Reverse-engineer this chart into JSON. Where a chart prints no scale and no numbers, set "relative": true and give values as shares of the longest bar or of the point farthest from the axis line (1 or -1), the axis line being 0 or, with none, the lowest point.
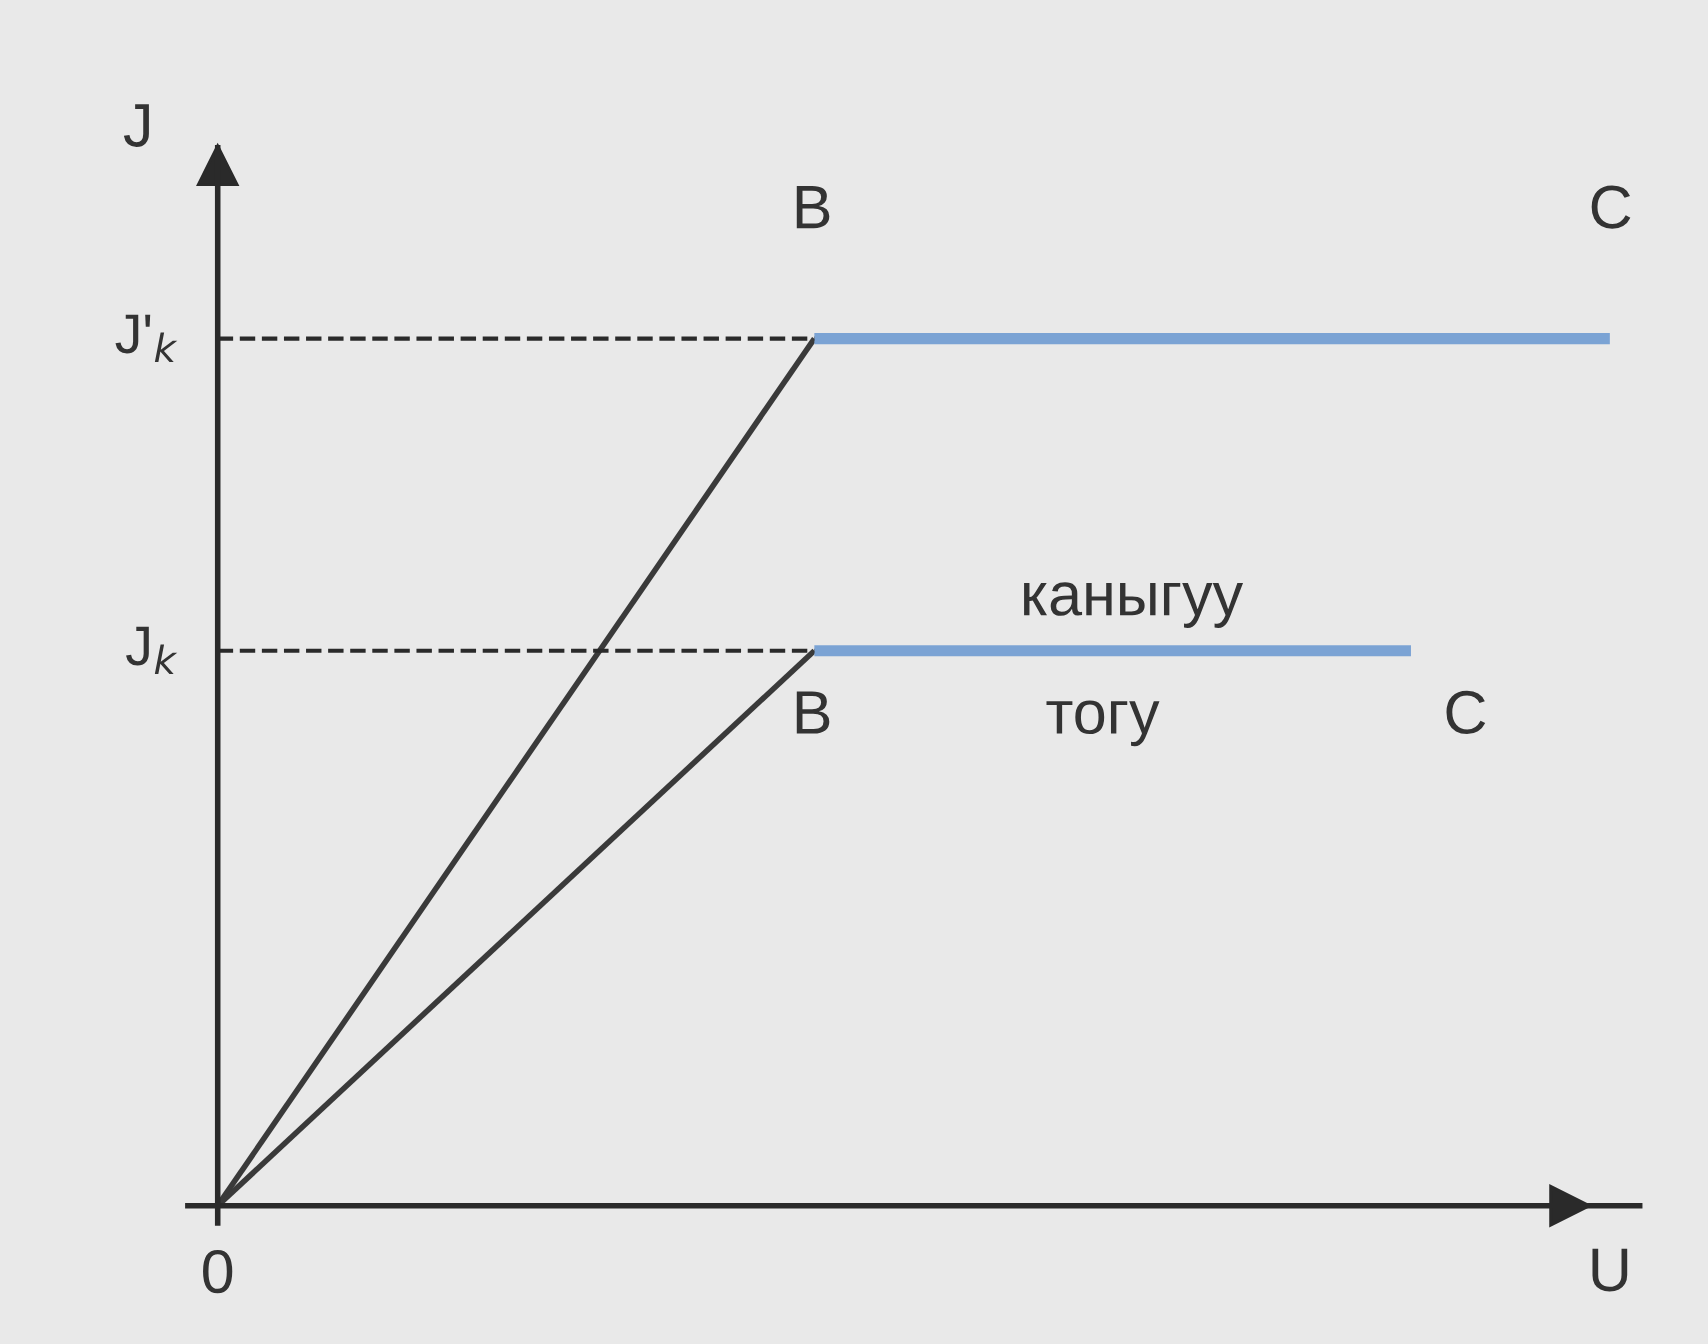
{
  "chart_data": {
    "type": "line",
    "relative": true,
    "xlabel": "U",
    "ylabel": "J",
    "marker": "none",
    "line_style": "solid",
    "categories": [
      null,
      null,
      null,
      null,
      null,
      null,
      null,
      null
    ],
    "series": [
      {
        "color": "#3a3a3a",
        "values": [
          0,
          null,
          null,
          1,
          null,
          null,
          null,
          null
        ]
      },
      {
        "color": "#7ba3d4",
        "values": [
          null,
          null,
          null,
          1,
          null,
          null,
          null,
          1
        ]
      },
      {
        "color": "#3a3a3a",
        "values": [
          0,
          null,
          null,
          0.64,
          null,
          null,
          null,
          null
        ]
      },
      {
        "color": "#7ba3d4",
        "values": [
          null,
          null,
          null,
          0.64,
          null,
          null,
          0.64,
          null
        ]
      }
    ],
    "ref_lines": [
      {
        "axis": "y",
        "value": 1,
        "label": "J'$_{k}$",
        "color": "#2a2a2a",
        "line_style": "dashed"
      },
      {
        "axis": "y",
        "value": 0.64,
        "label": "J$_{k}$",
        "color": "#2a2a2a",
        "line_style": "dashed"
      }
    ],
    "annotations": [
      "B",
      "C",
      "B",
      "C",
      "каныгуу",
      "тогу",
      "0"
    ]
  }
}
